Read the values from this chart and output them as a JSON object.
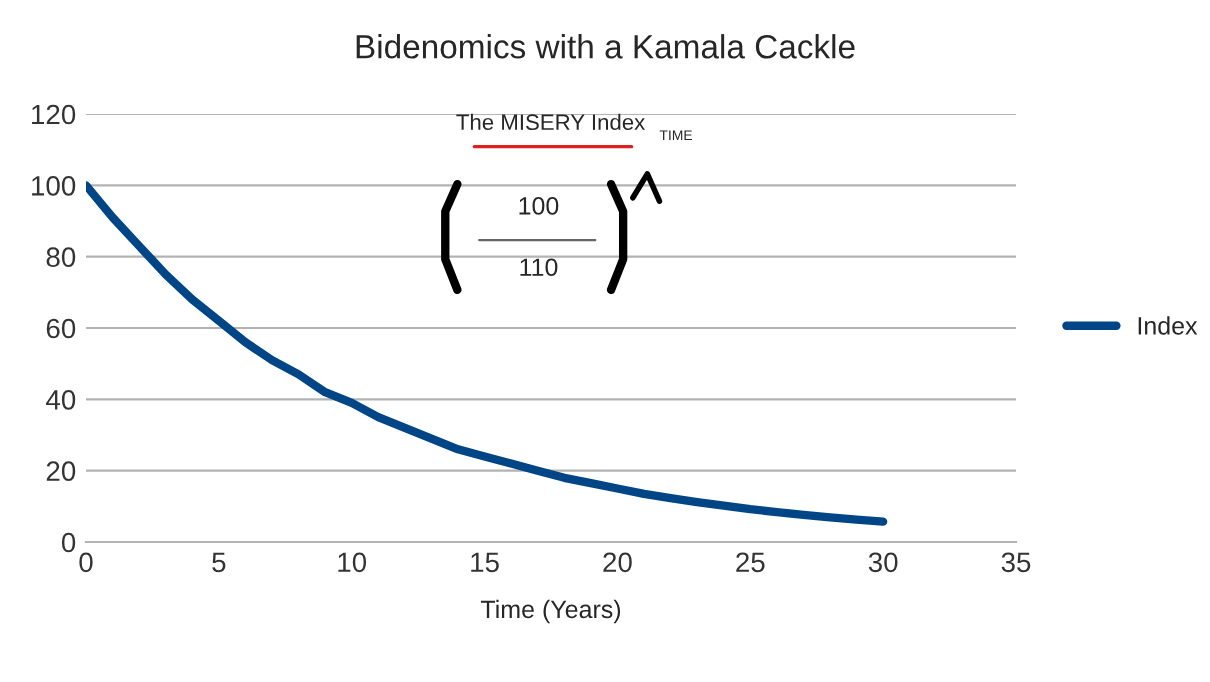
{
  "chart_data": {
    "type": "line",
    "title": "Bidenomics with a Kamala Cackle",
    "xlabel": "Time (Years)",
    "series": [
      {
        "name": "Index",
        "color": "#004586",
        "x": [
          0,
          1,
          2,
          3,
          4,
          5,
          6,
          7,
          8,
          9,
          10,
          11,
          12,
          13,
          14,
          15,
          16,
          17,
          18,
          19,
          20,
          21,
          22,
          23,
          24,
          25,
          26,
          27,
          28,
          29,
          30
        ],
        "values": [
          100,
          91,
          83,
          75,
          68,
          62,
          56,
          51,
          47,
          42,
          39,
          35,
          32,
          29,
          26,
          24,
          22,
          20,
          18,
          16.5,
          15,
          13.5,
          12.3,
          11.2,
          10.2,
          9.2,
          8.4,
          7.6,
          6.9,
          6.3,
          5.7
        ]
      }
    ],
    "xlim": [
      0,
      35
    ],
    "xticks": [
      0,
      5,
      10,
      15,
      20,
      25,
      30,
      35
    ],
    "ylim": [
      0,
      120
    ],
    "yticks": [
      0,
      20,
      40,
      60,
      80,
      100,
      120
    ],
    "grid": "y",
    "legend": "right",
    "marker": "none",
    "line_style": "solid",
    "annotations": [
      "The MISERY Index",
      "100",
      "110",
      "TIME"
    ]
  }
}
